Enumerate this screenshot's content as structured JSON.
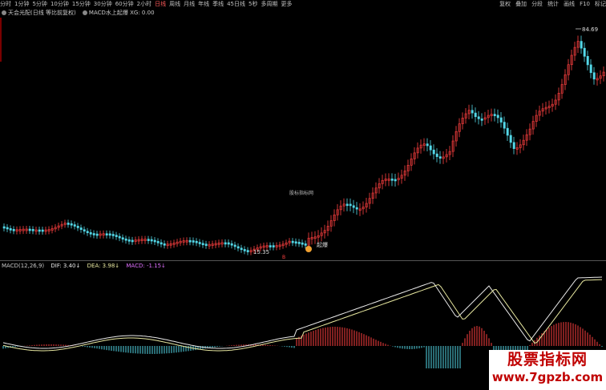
{
  "toolbar": {
    "periods": [
      "分时",
      "1分钟",
      "5分钟",
      "10分钟",
      "15分钟",
      "30分钟",
      "60分钟",
      "2小时",
      "日线",
      "周线",
      "月线",
      "年线",
      "季线",
      "45日线",
      "5秒",
      "多周期",
      "更多"
    ],
    "active_index": 8,
    "tools": [
      "复权",
      "叠加",
      "分段",
      "统计",
      "画线",
      "F10",
      "标记"
    ]
  },
  "legend": {
    "stock": "天会光配(日线 等比前复权)",
    "indicator": "MACD水上起爆 XG: 0.00"
  },
  "price": {
    "high_label": "84.69",
    "low_label": "15.35",
    "buy_marker": "B",
    "signal_text": "起爆"
  },
  "watermark": "股标指标网",
  "macd": {
    "title": "MACD(12,26,9)",
    "dif": "DIF: 3.40↓",
    "dea": "DEA: 3.98↓",
    "macd": "MACD: -1.15↓"
  },
  "brand": {
    "line1": "股票指标网",
    "line2": "www.7gpzb.com"
  },
  "colors": {
    "up": "#ff4040",
    "down": "#54d8e8",
    "dif": "#e8e8e8",
    "dea": "#e8e8a0"
  }
}
